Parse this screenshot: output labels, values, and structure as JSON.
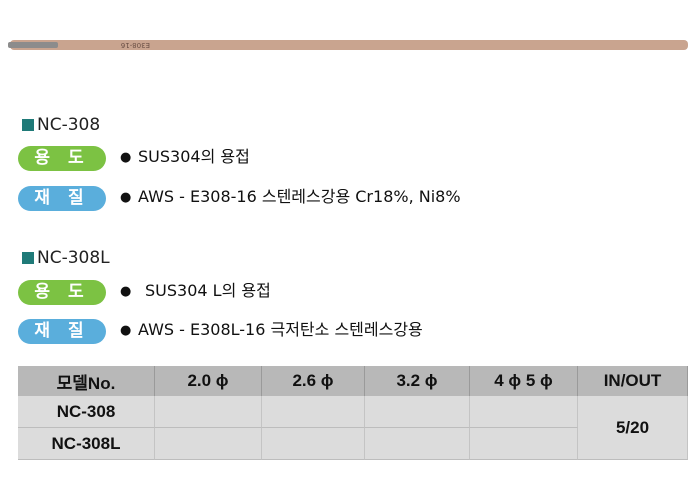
{
  "rod": {
    "marking": "E308-16"
  },
  "sections": [
    {
      "title": "NC-308",
      "usage": {
        "label": "용 도",
        "text": "SUS304의 용접"
      },
      "material": {
        "label": "재 질",
        "text": "AWS - E308-16 스텐레스강용 Cr18%, Ni8%"
      }
    },
    {
      "title": "NC-308L",
      "usage": {
        "label": "용 도",
        "text": "SUS304 L의 용접"
      },
      "material": {
        "label": "재 질",
        "text": "AWS - E308L-16 극저탄소 스텐레스강용"
      }
    }
  ],
  "table": {
    "header": [
      "모델No.",
      "2.0 ϕ",
      "2.6 ϕ",
      "3.2 ϕ",
      "4 ϕ 5 ϕ",
      "IN/OUT"
    ],
    "rows": [
      "NC-308",
      "NC-308L"
    ],
    "in_out": "5/20"
  }
}
